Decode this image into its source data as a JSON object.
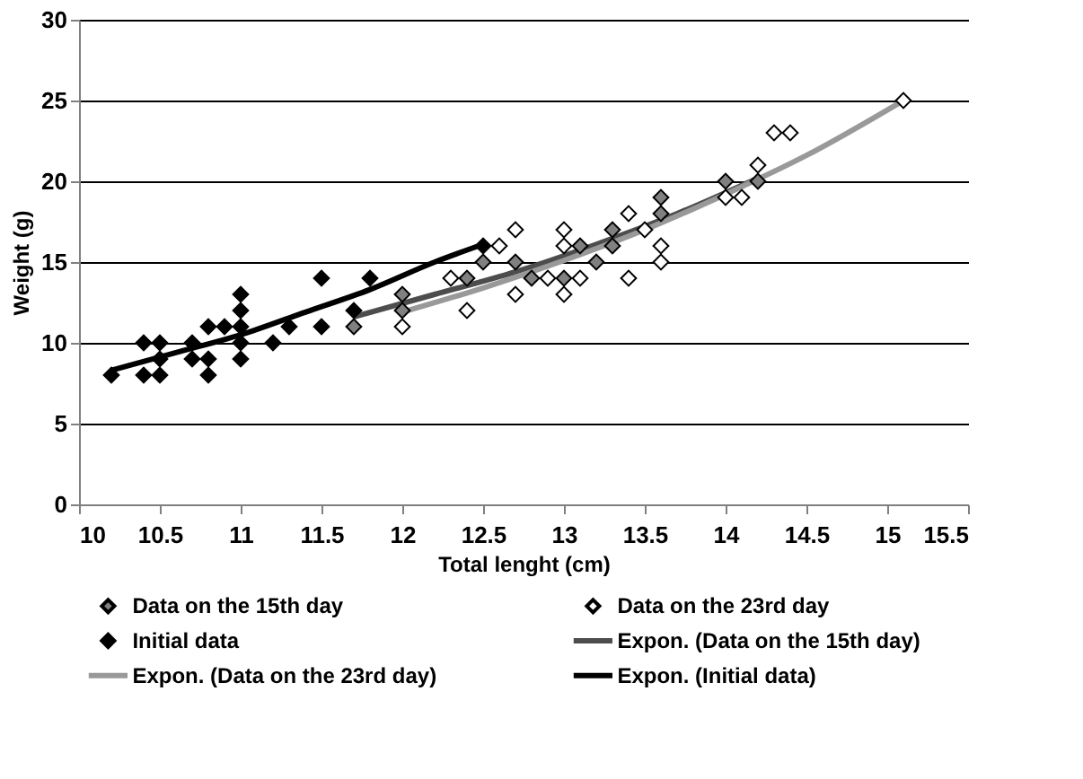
{
  "chart_data": {
    "type": "scatter",
    "xlabel": "Total lenght (cm)",
    "ylabel": "Weight (g)",
    "xlim": [
      10,
      15.5
    ],
    "xticks": [
      10,
      10.5,
      11,
      11.5,
      12,
      12.5,
      13,
      13.5,
      14,
      14.5,
      15,
      15.5
    ],
    "ylim": [
      0,
      30
    ],
    "yticks": [
      0,
      5,
      10,
      15,
      20,
      25,
      30
    ],
    "grid": "y",
    "legend": "bottom",
    "series": [
      {
        "name": "Data on the 15th day",
        "marker": "diamond",
        "color": "#808080",
        "x": [
          11.7,
          12,
          12,
          12.4,
          12.5,
          12.7,
          12.8,
          13,
          13.1,
          13.2,
          13.3,
          13.3,
          13.6,
          13.6,
          14,
          14.2
        ],
        "values": [
          11,
          13,
          12,
          14,
          15,
          15,
          14,
          14,
          16,
          15,
          17,
          16,
          19,
          18,
          20,
          20
        ]
      },
      {
        "name": "Data on the 23rd day",
        "marker": "diamond",
        "color": "#ffffff",
        "x": [
          12,
          12.3,
          12.4,
          12.6,
          12.7,
          12.7,
          12.9,
          13,
          13,
          13,
          13.1,
          13.4,
          13.4,
          13.5,
          13.6,
          13.6,
          14,
          14.1,
          14.2,
          14.3,
          14.4,
          15.1
        ],
        "values": [
          11,
          14,
          12,
          16,
          17,
          13,
          14,
          17,
          16,
          13,
          14,
          18,
          14,
          17,
          16,
          15,
          19,
          19,
          21,
          23,
          23,
          25
        ]
      },
      {
        "name": "Initial data",
        "marker": "diamond",
        "color": "#000000",
        "x": [
          10.2,
          10.4,
          10.4,
          10.5,
          10.5,
          10.5,
          10.7,
          10.7,
          10.8,
          10.8,
          10.8,
          10.9,
          11,
          11,
          11,
          11,
          11,
          11.2,
          11.3,
          11.5,
          11.5,
          11.7,
          11.8,
          12.5
        ],
        "values": [
          8,
          10,
          8,
          10,
          8,
          9,
          10,
          9,
          11,
          9,
          8,
          11,
          13,
          12,
          11,
          10,
          9,
          10,
          11,
          14,
          11,
          12,
          14,
          16
        ]
      },
      {
        "name": "Expon. (Data on the 15th day)",
        "type": "line",
        "marker": "none",
        "color": "#4d4d4d",
        "x": [
          11.7,
          12.2,
          12.7,
          13.2,
          13.7,
          14.2
        ],
        "values": [
          11.6,
          13,
          14.4,
          16.1,
          18,
          20.2
        ]
      },
      {
        "name": "Expon. (Data on the 23rd day)",
        "type": "line",
        "marker": "none",
        "color": "#999999",
        "x": [
          12,
          12.5,
          13,
          13.5,
          14,
          14.5,
          15.1
        ],
        "values": [
          11.9,
          13.4,
          15.1,
          17,
          19.2,
          21.6,
          25
        ]
      },
      {
        "name": "Expon. (Initial data)",
        "type": "line",
        "marker": "none",
        "color": "#000000",
        "x": [
          10.2,
          10.6,
          11,
          11.4,
          11.8,
          12.2,
          12.5
        ],
        "values": [
          8.3,
          9.4,
          10.5,
          11.9,
          13.3,
          15,
          16.1
        ]
      }
    ]
  }
}
